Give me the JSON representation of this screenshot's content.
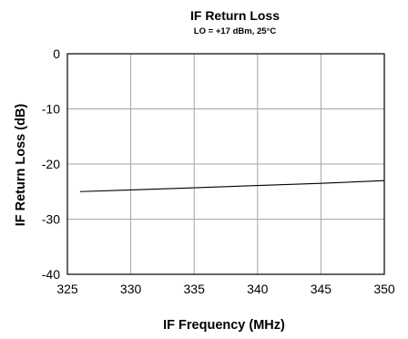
{
  "chart_data": {
    "type": "line",
    "title": "IF Return Loss",
    "subtitle": "LO = +17 dBm, 25°C",
    "xlabel": "IF Frequency (MHz)",
    "ylabel": "IF Return Loss (dB)",
    "xlim": [
      325,
      350
    ],
    "ylim": [
      -40,
      0
    ],
    "xticks": [
      325,
      330,
      335,
      340,
      345,
      350
    ],
    "yticks": [
      0,
      -10,
      -20,
      -30,
      -40
    ],
    "grid": true,
    "series": [
      {
        "x": [
          326,
          330,
          335,
          340,
          345,
          350
        ],
        "y": [
          -25.0,
          -24.7,
          -24.3,
          -23.9,
          -23.5,
          -23.0
        ]
      }
    ]
  }
}
